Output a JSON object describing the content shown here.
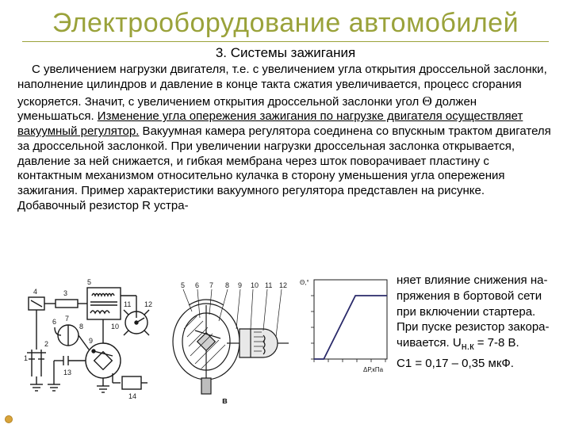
{
  "colors": {
    "title": "#9aa23a",
    "hr": "#9aa23a",
    "text": "#000000",
    "bullet_fill": "#d9a43a",
    "bullet_stroke": "#b58525",
    "diagram_stroke": "#1a1a1a",
    "ground_fill": "#3a3a3a",
    "chart_line": "#2a2a6a",
    "chart_axis": "#1a1a1a",
    "background": "#ffffff"
  },
  "title": "Электрооборудование автомобилей",
  "subtitle": "3. Системы зажигания",
  "paragraph": {
    "part1": "С увеличением нагрузки двигателя, т.е. с увеличением угла открытия дроссельной заслонки, наполнение цилиндров и давление в конце такта сжатия увеличивается, процесс сгорания ускоряется. Значит, с увеличением открытия дроссельной заслонки угол ",
    "theta": "Θ",
    "part2": " должен уменьшаться. ",
    "underlined": "Изменение угла опережения зажигания по нагрузке двигателя осуществляет вакуумный регулятор.",
    "part3": " Вакуумная камера регулятора соединена со впускным трактом двигателя за дроссельной заслонкой. При увеличении нагрузки дроссельная заслонка открывается, давление за ней снижается, и гибкая мембрана через шток поворачивает пластину с контактным механизмом относительно кулачка в сторону уменьшения угла опережения зажигания. Пример характеристики вакуумного регулятора представлен на рисунке. Добавочный резистор ",
    "RR": "R",
    "part4": " устра-"
  },
  "right_column": {
    "l1": "няет влияние снижения на-",
    "l2": "пряжения в бортовой сети",
    "l3": "при включении стартера.",
    "l4": "При пуске резистор закора-",
    "l5_a": "чивается. ",
    "l5_u": "U",
    "l5_sub": "н.к",
    "l5_b": " = 7-8 В.",
    "c1": "С1 = 0,17 – 0,35 мкФ."
  },
  "diagram_a": {
    "labels": [
      "1",
      "2",
      "3",
      "4",
      "5",
      "6",
      "7",
      "8",
      "9",
      "10",
      "11",
      "12",
      "13",
      "14"
    ]
  },
  "diagram_b": {
    "labels": [
      "5",
      "6",
      "7",
      "8",
      "9",
      "10",
      "11",
      "12"
    ],
    "panel": "в"
  },
  "chart": {
    "type": "line",
    "y_label": "Θ,°",
    "x_label": "ΔР,кПа",
    "xlim": [
      0,
      60
    ],
    "ylim": [
      0,
      30
    ],
    "points": [
      [
        0,
        0
      ],
      [
        8,
        0
      ],
      [
        34,
        24
      ],
      [
        60,
        24
      ]
    ],
    "background": "#ffffff",
    "axis_color": "#1a1a1a",
    "line_color": "#2a2a6a",
    "line_width": 1.8,
    "fontsize": 8
  }
}
